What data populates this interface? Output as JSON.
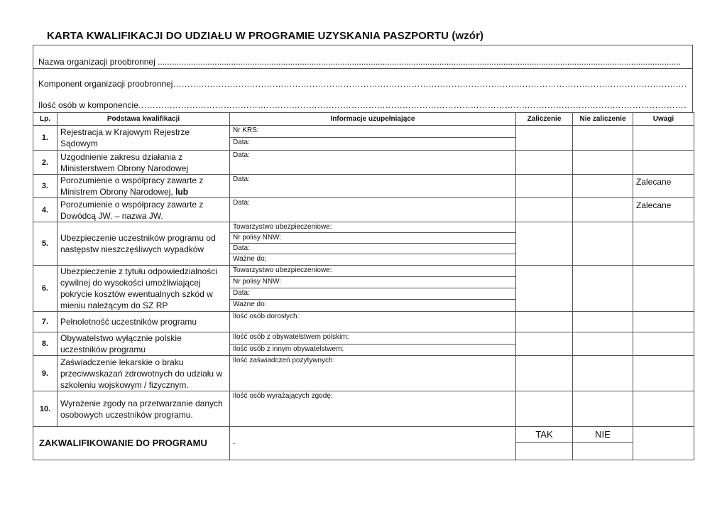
{
  "title": "KARTA KWALIFIKACJI DO UDZIAŁU W PROGRAMIE UZYSKANIA PASZPORTU (wzór)",
  "fields": [
    "Nazwa organizacji proobronnej .............................................................................................................................................................................................................................",
    "Komponent organizacji proobronnej………………………………………………………………………………………………………………………………………………………………………………………….",
    "Ilość osób w komponencie……………………………………………………………………………………………………………………………………………………………………………………………………………"
  ],
  "headers": {
    "lp": "Lp.",
    "basis": "Podstawa kwalifikacji",
    "info": "Informacje uzupełniające",
    "pass": "Zaliczenie",
    "fail": "Nie zaliczenie",
    "notes": "Uwagi"
  },
  "rows": [
    {
      "lp": "1.",
      "basis": "Rejestracja w Krajowym Rejestrze Sądowym",
      "info": [
        "Nr KRS:",
        "Data:"
      ],
      "notes": ""
    },
    {
      "lp": "2.",
      "basis": "Uzgodnienie zakresu działania z Ministerstwem Obrony Narodowej",
      "info": [
        "Data:"
      ],
      "notes": ""
    },
    {
      "lp": "3.",
      "basis": "Porozumienie o współpracy zawarte z Ministrem Obrony Narodowej,",
      "basis_bold": "lub",
      "info": [
        "Data:"
      ],
      "notes": "Zalecane"
    },
    {
      "lp": "4.",
      "basis": "Porozumienie o współpracy zawarte z Dowódcą JW. – nazwa JW.",
      "info": [
        "Data:"
      ],
      "notes": "Zalecane"
    },
    {
      "lp": "5.",
      "basis": "Ubezpieczenie uczestników programu od następstw nieszczęśliwych wypadków",
      "info": [
        "Towarzystwo ubezpieczeniowe:",
        "Nr polisy NNW:",
        "Data:",
        "Ważne do:"
      ],
      "notes": ""
    },
    {
      "lp": "6.",
      "basis": "Ubezpieczenie z tytułu odpowiedzialności cywilnej do wysokości umożliwiającej pokrycie kosztów ewentualnych szkód w mieniu należącym do SZ RP",
      "info": [
        "Towarzystwo ubezpieczeniowe:",
        "Nr polisy NNW:",
        "Data:",
        "Ważne do:"
      ],
      "notes": ""
    },
    {
      "lp": "7.",
      "basis": "Pełnoletność uczestników programu",
      "info": [
        "Ilość osób dorosłych:"
      ],
      "notes": ""
    },
    {
      "lp": "8.",
      "basis": "Obywatelstwo wyłącznie polskie uczestników programu",
      "info": [
        "Ilość osób z obywatelstwem polskim:",
        "Ilość osób z innym obywatelstwem:"
      ],
      "notes": ""
    },
    {
      "lp": "9.",
      "basis": "Zaświadczenie lekarskie o braku przeciwwskazań zdrowotnych do udziału w szkoleniu wojskowym / fizycznym.",
      "info": [
        "Ilość zaświadczeń pozytywnych:"
      ],
      "notes": ""
    },
    {
      "lp": "10.",
      "basis": "Wyrażenie zgody na przetwarzanie danych osobowych uczestników programu.",
      "info": [
        "Ilość osób wyrażających zgodę:"
      ],
      "notes": ""
    }
  ],
  "final": {
    "label": "ZAKWALIFIKOWANIE DO PROGRAMU",
    "info": "-",
    "yes": "TAK",
    "no": "NIE"
  }
}
